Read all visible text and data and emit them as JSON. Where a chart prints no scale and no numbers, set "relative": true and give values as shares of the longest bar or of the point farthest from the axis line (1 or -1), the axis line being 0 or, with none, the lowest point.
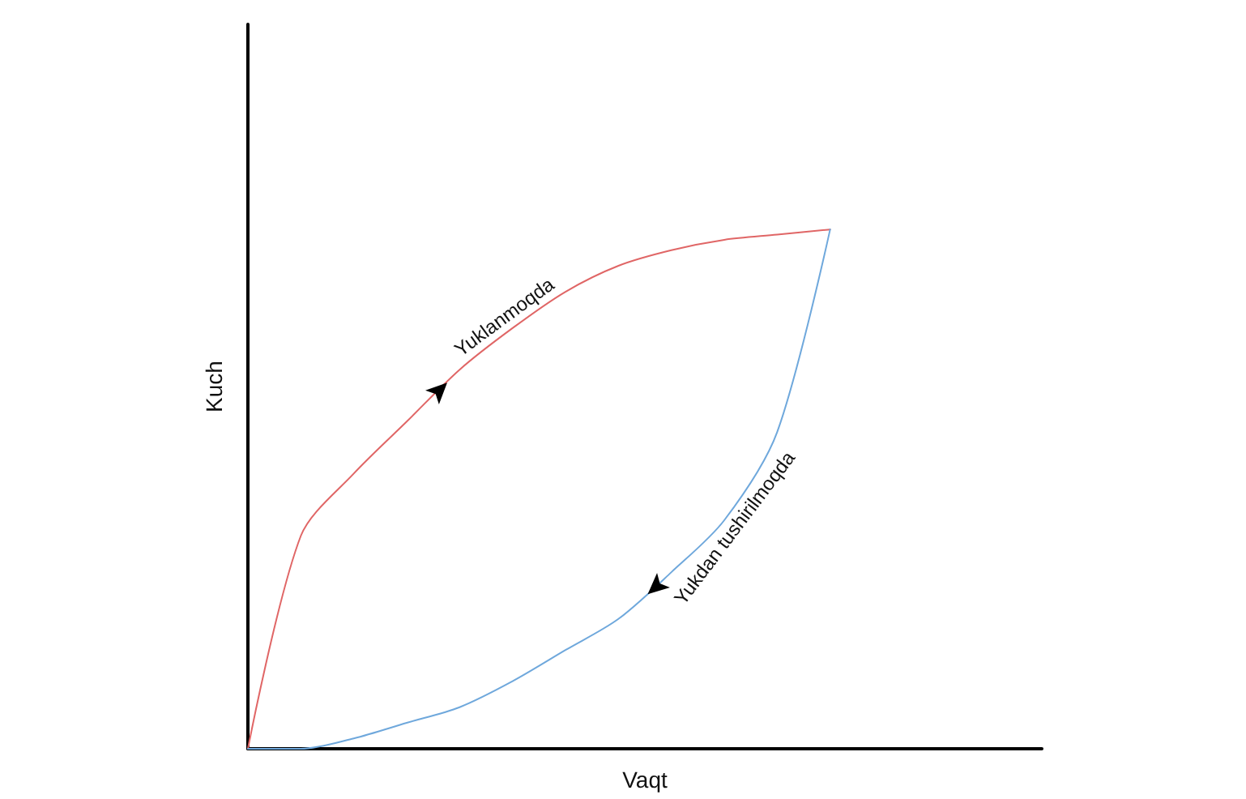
{
  "chart_data": {
    "type": "line",
    "relative": true,
    "xlabel": "Vaqt",
    "ylabel": "Kuch",
    "marker": "none",
    "grid": false,
    "line_style": "solid",
    "categories": [
      null,
      null,
      null,
      null,
      null,
      null,
      null,
      null,
      null,
      null,
      null,
      null,
      null,
      null,
      null,
      null
    ],
    "series": [
      {
        "color": "#e06666",
        "values": [
          0,
          0.41,
          0.53,
          0.63,
          0.73,
          0.81,
          0.88,
          0.93,
          0.96,
          0.98,
          0.99,
          1,
          null,
          null,
          null,
          null
        ]
      },
      {
        "color": "#6fa8dc",
        "values": [
          0,
          0,
          0.02,
          0.05,
          0.08,
          0.13,
          0.19,
          0.25,
          0.34,
          0.44,
          0.61,
          1,
          null,
          null,
          null,
          null
        ]
      }
    ],
    "annotations": [
      "Yuklanmoqda",
      "Yukdan tushirilmoqda"
    ]
  }
}
